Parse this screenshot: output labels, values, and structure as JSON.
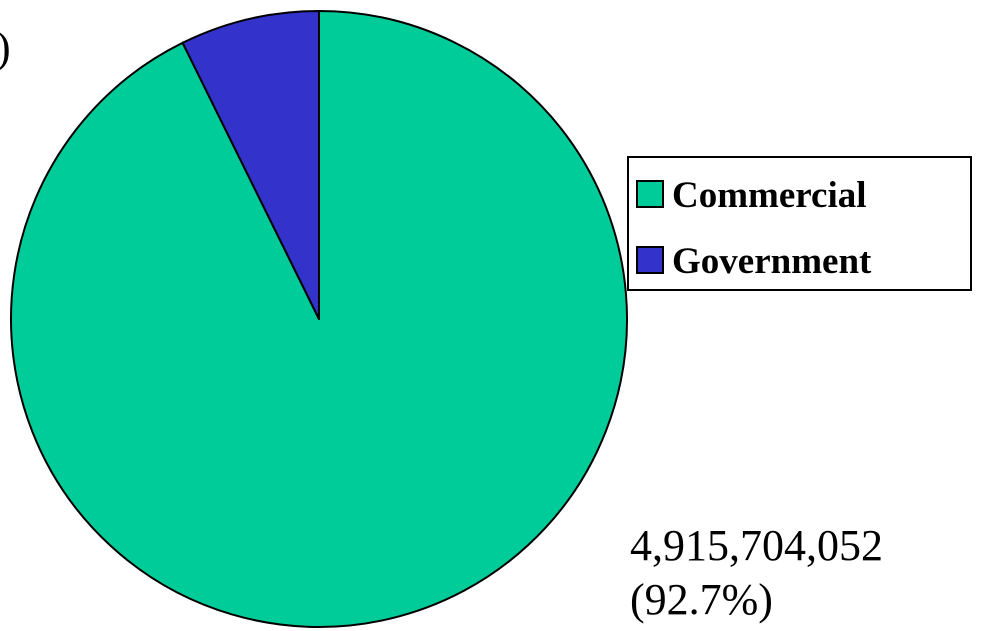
{
  "chart_data": {
    "type": "pie",
    "title": "",
    "legend": "right",
    "start_angle_deg": 0,
    "direction": "clockwise",
    "slices": [
      {
        "name": "Commercial",
        "value": 4915704052,
        "percent": 92.7,
        "color": "#00CC99",
        "label_value": "4,915,704,052",
        "label_percent": "(92.7%)"
      },
      {
        "name": "Government",
        "value": 387096000,
        "percent": 7.3,
        "color": "#3333CC",
        "label_value": "",
        "label_percent": ")"
      }
    ]
  }
}
